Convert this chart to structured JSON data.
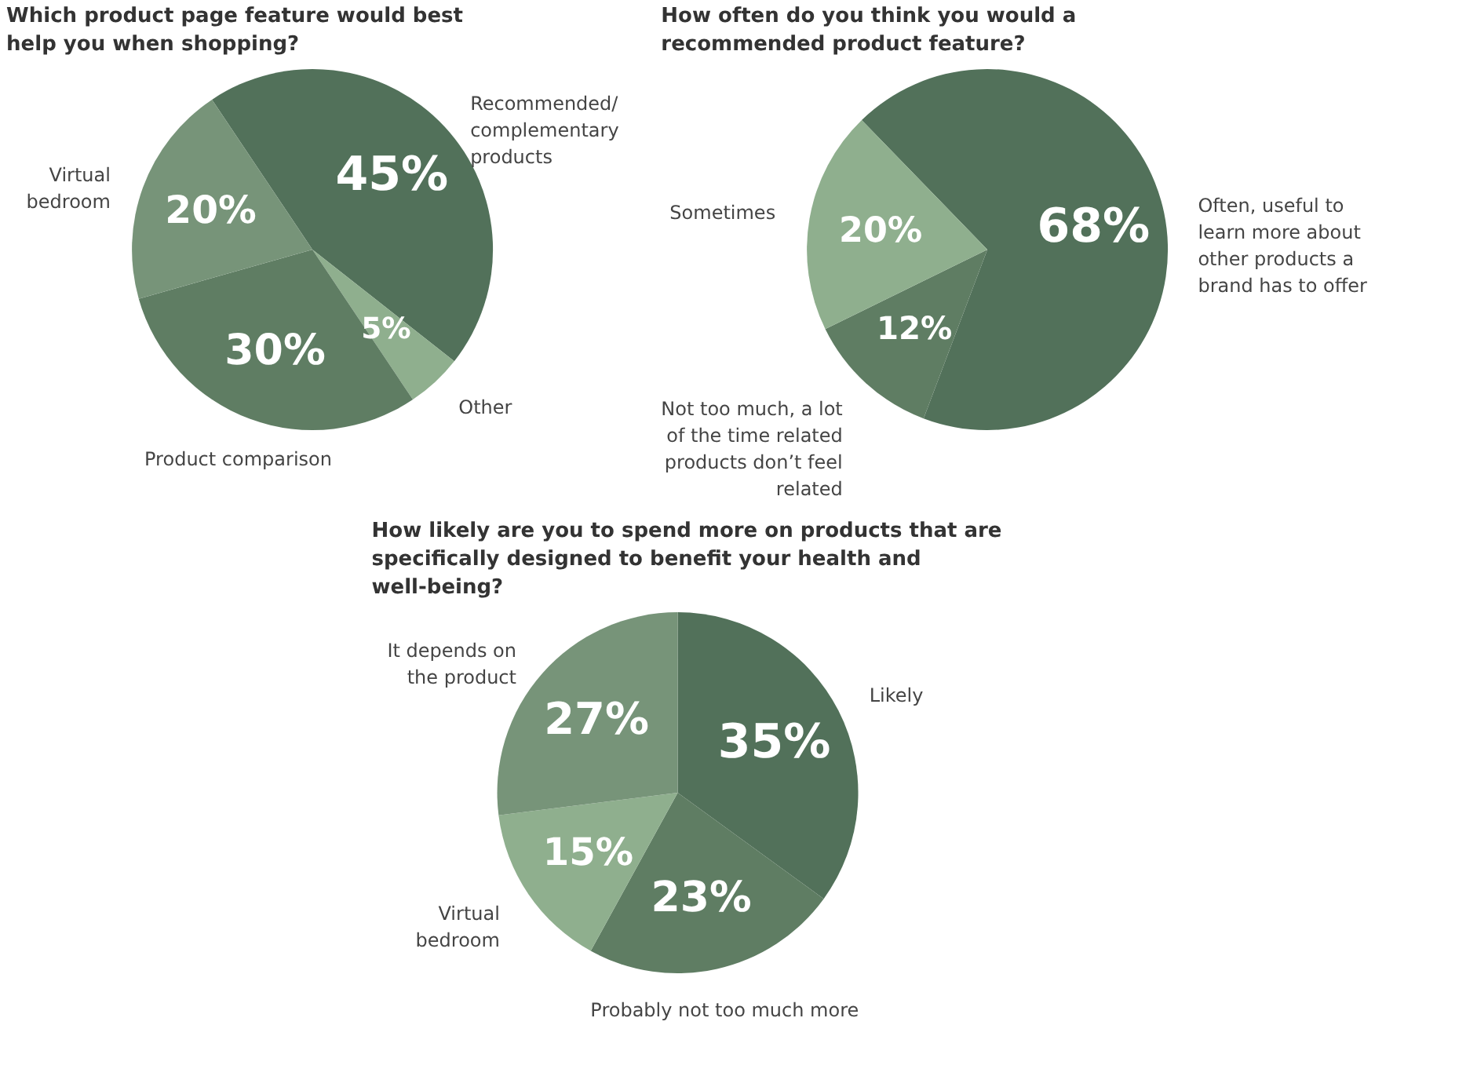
{
  "chart_data": [
    {
      "type": "pie",
      "title": "Which product page feature would best help you when shopping?",
      "categories": [
        "Recommended/ complementary products",
        "Other",
        "Product comparison",
        "Virtual bedroom"
      ],
      "values": [
        45,
        5,
        30,
        20
      ],
      "colors": [
        "#52715a",
        "#8faf8e",
        "#5f7d63",
        "#779479"
      ],
      "value_labels": [
        "45%",
        "5%",
        "30%",
        "20%"
      ]
    },
    {
      "type": "pie",
      "title": "How often do you think you would a recommended product feature?",
      "categories": [
        "Often, useful to learn more about other products a brand has to offer",
        "Not too much, a lot of the time related products don’t feel related",
        "Sometimes"
      ],
      "values": [
        68,
        12,
        20
      ],
      "colors": [
        "#52715a",
        "#5f7d63",
        "#8faf8e"
      ],
      "value_labels": [
        "68%",
        "12%",
        "20%"
      ]
    },
    {
      "type": "pie",
      "title": "How likely are you to spend more on products that are specifically designed to benefit your health and well-being?",
      "categories": [
        "Likely",
        "Probably not too much more",
        "Virtual bedroom",
        "It depends on the product"
      ],
      "values": [
        35,
        23,
        15,
        27
      ],
      "colors": [
        "#52715a",
        "#5f7d63",
        "#8faf8e",
        "#779479"
      ],
      "value_labels": [
        "35%",
        "23%",
        "15%",
        "27%"
      ]
    }
  ]
}
